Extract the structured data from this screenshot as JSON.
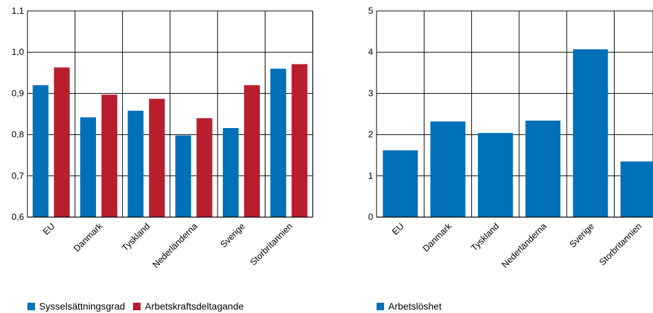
{
  "colors": {
    "blue": "#0070b8",
    "red": "#b81e2d",
    "grid": "#000000"
  },
  "chart_data": [
    {
      "type": "bar",
      "categories": [
        "EU",
        "Danmark",
        "Tyskland",
        "Nederländerna",
        "Sverige",
        "Storbritannien"
      ],
      "series": [
        {
          "name": "Sysselsättningsgrad",
          "values": [
            0.92,
            0.842,
            0.858,
            0.798,
            0.816,
            0.96
          ],
          "color": "#0070b8"
        },
        {
          "name": "Arbetskraftsdeltagande",
          "values": [
            0.963,
            0.897,
            0.887,
            0.84,
            0.92,
            0.971
          ],
          "color": "#b81e2d"
        }
      ],
      "ylim": [
        0.6,
        1.1
      ],
      "yticks": [
        0.6,
        0.7,
        0.8,
        0.9,
        1.0,
        1.1
      ],
      "ytick_labels": [
        "0,6",
        "0,7",
        "0,8",
        "0,9",
        "1,0",
        "1,1"
      ],
      "grid": true,
      "legend_position": "bottom"
    },
    {
      "type": "bar",
      "categories": [
        "EU",
        "Danmark",
        "Tyskland",
        "Nederländerna",
        "Sverige",
        "Storbritannien"
      ],
      "series": [
        {
          "name": "Arbetslöshet",
          "values": [
            1.62,
            2.32,
            2.04,
            2.34,
            4.07,
            1.35
          ],
          "color": "#0070b8"
        }
      ],
      "ylim": [
        0,
        5
      ],
      "yticks": [
        0,
        1,
        2,
        3,
        4,
        5
      ],
      "ytick_labels": [
        "0",
        "1",
        "2",
        "3",
        "4",
        "5"
      ],
      "grid": true,
      "legend_position": "bottom"
    }
  ]
}
